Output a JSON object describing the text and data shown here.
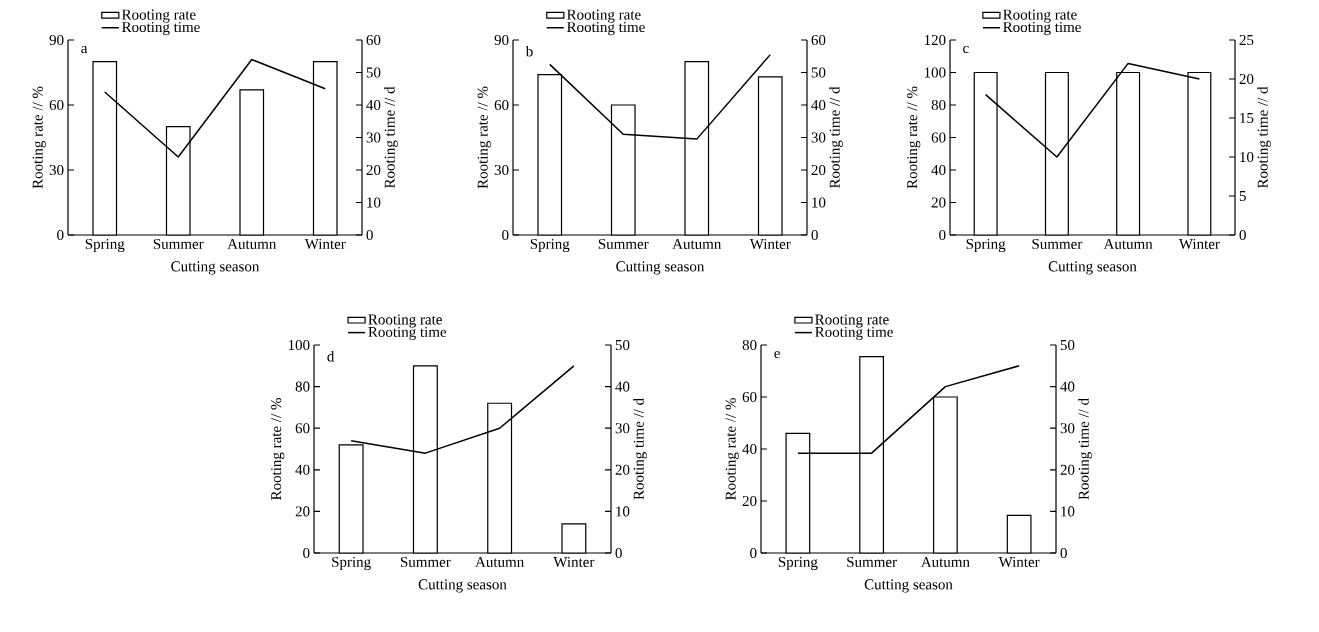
{
  "chart_data": [
    {
      "type": "bar",
      "annotations": [
        "a"
      ],
      "xlabel": "Cutting season",
      "ylabel": "Rooting rate // %",
      "y2label": "Rooting time // d",
      "categories": [
        "Spring",
        "Summer",
        "Autumn",
        "Winter"
      ],
      "series": [
        {
          "name": "Rooting rate",
          "color": "#ffffff",
          "values": [
            80,
            50,
            67,
            80
          ]
        },
        {
          "name": "Rooting time",
          "type": "line",
          "axis": "y2",
          "color": "#000000",
          "values": [
            44,
            24,
            54,
            45
          ]
        }
      ],
      "ylim": [
        0,
        90
      ],
      "yticks": [
        0,
        30,
        60,
        90
      ],
      "y2lim": [
        0,
        60
      ],
      "y2ticks": [
        0,
        10,
        20,
        30,
        40,
        50,
        60
      ],
      "legend": "top left",
      "grid": false
    },
    {
      "type": "bar",
      "annotations": [
        "b"
      ],
      "xlabel": "Cutting season",
      "ylabel": "Rooting rate // %",
      "y2label": "Rooting time // d",
      "categories": [
        "Spring",
        "Summer",
        "Autumn",
        "Winter"
      ],
      "series": [
        {
          "name": "Rooting rate",
          "color": "#ffffff",
          "values": [
            74,
            60,
            80,
            73
          ]
        },
        {
          "name": "Rooting time",
          "type": "line",
          "axis": "y2",
          "color": "#000000",
          "values": [
            52.5,
            31,
            29.5,
            55.5
          ]
        }
      ],
      "ylim": [
        0,
        90
      ],
      "yticks": [
        0,
        30,
        60,
        90
      ],
      "y2lim": [
        0,
        60
      ],
      "y2ticks": [
        0,
        10,
        20,
        30,
        40,
        50,
        60
      ],
      "legend": "top left",
      "grid": false
    },
    {
      "type": "bar",
      "annotations": [
        "c"
      ],
      "xlabel": "Cutting season",
      "ylabel": "Rooting rate // %",
      "y2label": "Rooting time // d",
      "categories": [
        "Spring",
        "Summer",
        "Autumn",
        "Winter"
      ],
      "series": [
        {
          "name": "Rooting rate",
          "color": "#ffffff",
          "values": [
            100,
            100,
            100,
            100
          ]
        },
        {
          "name": "Rooting time",
          "type": "line",
          "axis": "y2",
          "color": "#000000",
          "values": [
            18,
            10,
            22,
            20
          ]
        }
      ],
      "ylim": [
        0,
        120
      ],
      "yticks": [
        0,
        20,
        40,
        60,
        80,
        100,
        120
      ],
      "y2lim": [
        0,
        25
      ],
      "y2ticks": [
        0,
        5,
        10,
        15,
        20,
        25
      ],
      "legend": "top left",
      "grid": false
    },
    {
      "type": "bar",
      "annotations": [
        "d"
      ],
      "xlabel": "Cutting season",
      "ylabel": "Rooting rate // %",
      "y2label": "Rooting time // d",
      "categories": [
        "Spring",
        "Summer",
        "Autumn",
        "Winter"
      ],
      "series": [
        {
          "name": "Rooting rate",
          "color": "#ffffff",
          "values": [
            52,
            90,
            72,
            14
          ]
        },
        {
          "name": "Rooting time",
          "type": "line",
          "axis": "y2",
          "color": "#000000",
          "values": [
            27,
            24,
            30,
            45
          ]
        }
      ],
      "ylim": [
        0,
        100
      ],
      "yticks": [
        0,
        20,
        40,
        60,
        80,
        100
      ],
      "y2lim": [
        0,
        50
      ],
      "y2ticks": [
        0,
        10,
        20,
        30,
        40,
        50
      ],
      "legend": "top left",
      "grid": false
    },
    {
      "type": "bar",
      "annotations": [
        "e"
      ],
      "xlabel": "Cutting season",
      "ylabel": "Rooting rate // %",
      "y2label": "Rooting time // d",
      "categories": [
        "Spring",
        "Summer",
        "Autumn",
        "Winter"
      ],
      "series": [
        {
          "name": "Rooting rate",
          "color": "#ffffff",
          "values": [
            46,
            75.5,
            60,
            14.5
          ]
        },
        {
          "name": "Rooting time",
          "type": "line",
          "axis": "y2",
          "color": "#000000",
          "values": [
            24,
            24,
            40,
            45
          ]
        }
      ],
      "ylim": [
        0,
        80
      ],
      "yticks": [
        0,
        20,
        40,
        60,
        80
      ],
      "y2lim": [
        0,
        50
      ],
      "y2ticks": [
        0,
        10,
        20,
        30,
        40,
        50
      ],
      "legend": "top left",
      "grid": false
    }
  ]
}
